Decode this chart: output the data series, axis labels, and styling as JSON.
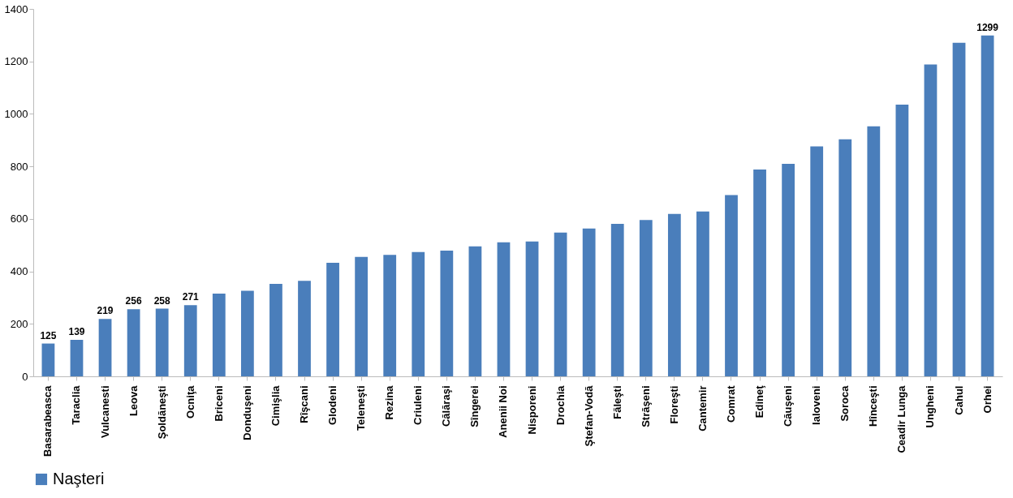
{
  "chart_data": {
    "type": "bar",
    "categories": [
      "Basarabeasca",
      "Taraclia",
      "Vulcanesti",
      "Leova",
      "Şoldăneşti",
      "Ocniţa",
      "Briceni",
      "Donduşeni",
      "Cimişlia",
      "Rîşcani",
      "Glodeni",
      "Teleneşti",
      "Rezina",
      "Criuleni",
      "Călăraşi",
      "Sîngerei",
      "Anenii Noi",
      "Nisporeni",
      "Drochia",
      "Ştefan-Vodă",
      "Făleşti",
      "Străşeni",
      "Floreşti",
      "Cantemir",
      "Comrat",
      "Edineţ",
      "Căuşeni",
      "Ialoveni",
      "Soroca",
      "Hînceşti",
      "Ceadir Lunga",
      "Ungheni",
      "Cahul",
      "Orhei"
    ],
    "series": [
      {
        "name": "Naşteri",
        "color": "#4a7ebb",
        "values": [
          125,
          139,
          219,
          256,
          258,
          271,
          315,
          326,
          352,
          364,
          433,
          455,
          463,
          474,
          479,
          495,
          511,
          514,
          548,
          563,
          581,
          596,
          619,
          628,
          691,
          788,
          810,
          876,
          903,
          953,
          1035,
          1188,
          1271,
          1299
        ],
        "value_labels": [
          "125",
          "139",
          "219",
          "256",
          "258",
          "271",
          null,
          null,
          null,
          null,
          null,
          null,
          null,
          null,
          null,
          null,
          null,
          null,
          null,
          null,
          null,
          null,
          null,
          null,
          null,
          null,
          null,
          null,
          null,
          null,
          null,
          null,
          null,
          "1299"
        ]
      }
    ],
    "ylim": [
      0,
      1400
    ],
    "yticks": [
      0,
      200,
      400,
      600,
      800,
      1000,
      1200,
      1400
    ],
    "grid": false,
    "legend": "bottom"
  }
}
